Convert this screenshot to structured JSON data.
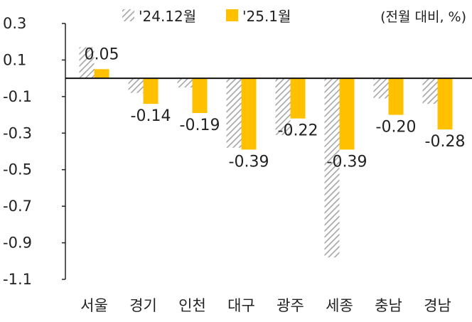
{
  "chart_data": {
    "type": "bar",
    "categories": [
      "서울",
      "경기",
      "인천",
      "대구",
      "광주",
      "세종",
      "충남",
      "경남"
    ],
    "series": [
      {
        "name": "'24.12월",
        "values": [
          0.17,
          -0.08,
          -0.05,
          -0.38,
          -0.31,
          -0.98,
          -0.11,
          -0.14
        ],
        "color": "#a6a6a6",
        "pattern": "diagonal-hatch"
      },
      {
        "name": "'25.1월",
        "values": [
          0.05,
          -0.14,
          -0.19,
          -0.39,
          -0.22,
          -0.39,
          -0.2,
          -0.28
        ],
        "labels": [
          "0.05",
          "-0.14",
          "-0.19",
          "-0.39",
          "-0.22",
          "-0.39",
          "-0.20",
          "-0.28"
        ],
        "color": "#ffc000"
      }
    ],
    "yticks": [
      0.3,
      0.1,
      -0.1,
      -0.3,
      -0.5,
      -0.7,
      -0.9,
      -1.1
    ],
    "ytick_labels": [
      "0.3",
      "0.1",
      "-0.1",
      "-0.3",
      "-0.5",
      "-0.7",
      "-0.9",
      "-1.1"
    ],
    "ylim": [
      -1.1,
      0.3
    ],
    "unit_note": "(전월 대비, %)",
    "legend": "top",
    "grid": false
  }
}
